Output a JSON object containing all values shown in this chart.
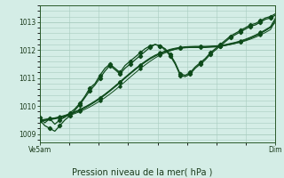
{
  "title": "Pression niveau de la mer( hPa )",
  "xlabel_left": "Ve5am",
  "xlabel_right": "Dim",
  "ylim": [
    1008.7,
    1013.6
  ],
  "yticks": [
    1009,
    1010,
    1011,
    1012,
    1013
  ],
  "bg_color": "#d4ede6",
  "grid_color": "#a8ccbf",
  "line_color": "#1a6b2a",
  "line_color_dark": "#0d4a1a",
  "series_wavy": [
    [
      1009.6,
      1009.4,
      1009.55,
      1009.35,
      1009.5,
      1009.6,
      1009.75,
      1009.9,
      1010.1,
      1010.35,
      1010.65,
      1010.8,
      1011.1,
      1011.35,
      1011.5,
      1011.35,
      1011.2,
      1011.45,
      1011.6,
      1011.75,
      1011.9,
      1012.05,
      1012.15,
      1012.2,
      1012.15,
      1012.05,
      1011.85,
      1011.55,
      1011.15,
      1011.1,
      1011.2,
      1011.4,
      1011.55,
      1011.7,
      1011.9,
      1012.05,
      1012.2,
      1012.35,
      1012.5,
      1012.6,
      1012.7,
      1012.8,
      1012.9,
      1012.95,
      1013.05,
      1013.15,
      1013.2,
      1013.3
    ],
    [
      1009.5,
      1009.3,
      1009.2,
      1009.1,
      1009.3,
      1009.5,
      1009.65,
      1009.85,
      1010.05,
      1010.3,
      1010.55,
      1010.75,
      1011.0,
      1011.25,
      1011.45,
      1011.3,
      1011.15,
      1011.35,
      1011.5,
      1011.65,
      1011.8,
      1011.95,
      1012.1,
      1012.2,
      1012.15,
      1012.0,
      1011.8,
      1011.5,
      1011.1,
      1011.05,
      1011.15,
      1011.35,
      1011.5,
      1011.65,
      1011.85,
      1012.0,
      1012.15,
      1012.3,
      1012.45,
      1012.55,
      1012.65,
      1012.75,
      1012.85,
      1012.9,
      1013.0,
      1013.1,
      1013.15,
      1013.25
    ]
  ],
  "series_straight": [
    [
      1009.5,
      1009.52,
      1009.54,
      1009.56,
      1009.58,
      1009.62,
      1009.67,
      1009.73,
      1009.8,
      1009.88,
      1009.97,
      1010.07,
      1010.18,
      1010.3,
      1010.43,
      1010.57,
      1010.72,
      1010.87,
      1011.03,
      1011.18,
      1011.33,
      1011.47,
      1011.6,
      1011.72,
      1011.82,
      1011.9,
      1011.97,
      1012.03,
      1012.07,
      1012.1,
      1012.12,
      1012.13,
      1012.13,
      1012.13,
      1012.13,
      1012.14,
      1012.15,
      1012.17,
      1012.2,
      1012.24,
      1012.28,
      1012.33,
      1012.39,
      1012.46,
      1012.54,
      1012.63,
      1012.73,
      1013.05
    ],
    [
      1009.5,
      1009.52,
      1009.55,
      1009.58,
      1009.62,
      1009.67,
      1009.73,
      1009.8,
      1009.88,
      1009.97,
      1010.07,
      1010.18,
      1010.3,
      1010.43,
      1010.57,
      1010.72,
      1010.87,
      1011.03,
      1011.18,
      1011.33,
      1011.47,
      1011.6,
      1011.72,
      1011.82,
      1011.9,
      1011.97,
      1012.03,
      1012.07,
      1012.1,
      1012.12,
      1012.13,
      1012.13,
      1012.13,
      1012.13,
      1012.14,
      1012.15,
      1012.17,
      1012.2,
      1012.24,
      1012.28,
      1012.33,
      1012.39,
      1012.46,
      1012.54,
      1012.63,
      1012.73,
      1012.84,
      1013.15
    ],
    [
      1009.48,
      1009.5,
      1009.53,
      1009.56,
      1009.6,
      1009.65,
      1009.71,
      1009.78,
      1009.86,
      1009.95,
      1010.05,
      1010.16,
      1010.28,
      1010.41,
      1010.55,
      1010.7,
      1010.85,
      1011.01,
      1011.16,
      1011.31,
      1011.45,
      1011.58,
      1011.7,
      1011.8,
      1011.88,
      1011.95,
      1012.01,
      1012.05,
      1012.08,
      1012.1,
      1012.11,
      1012.11,
      1012.11,
      1012.11,
      1012.12,
      1012.13,
      1012.15,
      1012.18,
      1012.22,
      1012.26,
      1012.31,
      1012.37,
      1012.44,
      1012.52,
      1012.61,
      1012.71,
      1012.82,
      1013.1
    ],
    [
      1009.46,
      1009.48,
      1009.51,
      1009.54,
      1009.58,
      1009.63,
      1009.69,
      1009.76,
      1009.84,
      1009.93,
      1010.03,
      1010.14,
      1010.26,
      1010.39,
      1010.53,
      1010.68,
      1010.83,
      1010.99,
      1011.14,
      1011.29,
      1011.43,
      1011.56,
      1011.68,
      1011.78,
      1011.86,
      1011.93,
      1011.99,
      1012.03,
      1012.06,
      1012.08,
      1012.09,
      1012.09,
      1012.09,
      1012.09,
      1012.1,
      1012.11,
      1012.13,
      1012.16,
      1012.2,
      1012.24,
      1012.29,
      1012.35,
      1012.42,
      1012.5,
      1012.59,
      1012.69,
      1012.8,
      1013.0
    ]
  ]
}
